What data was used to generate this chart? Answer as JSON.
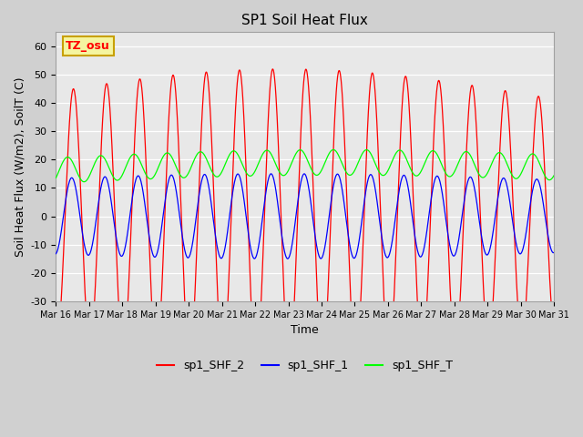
{
  "title": "SP1 Soil Heat Flux",
  "xlabel": "Time",
  "ylabel": "Soil Heat Flux (W/m2), SoilT (C)",
  "ylim": [
    -30,
    65
  ],
  "yticks": [
    -30,
    -20,
    -10,
    0,
    10,
    20,
    30,
    40,
    50,
    60
  ],
  "xtick_labels": [
    "Mar 16",
    "Mar 17",
    "Mar 18",
    "Mar 19",
    "Mar 20",
    "Mar 21",
    "Mar 22",
    "Mar 23",
    "Mar 24",
    "Mar 25",
    "Mar 26",
    "Mar 27",
    "Mar 28",
    "Mar 29",
    "Mar 30",
    "Mar 31"
  ],
  "plot_bg_color": "#e8e8e8",
  "fig_bg_color": "#d0d0d0",
  "line_colors": {
    "sp1_SHF_2": "red",
    "sp1_SHF_1": "blue",
    "sp1_SHF_T": "lime"
  },
  "watermark_text": "TZ_osu",
  "watermark_bg": "#f5f5a0",
  "watermark_border": "#c8a000",
  "n_days": 15,
  "points_per_day": 96
}
